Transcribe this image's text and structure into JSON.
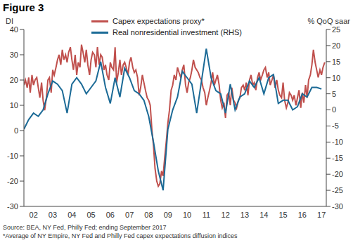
{
  "chart_data": {
    "type": "line",
    "title": "Figure 3",
    "ylabel": "DI",
    "y2label": "% QoQ saar",
    "annotations": [
      "Source: BEA, NY Fed, Philly Fed; ending September 2017",
      "*Average of NY Empire, NY Fed and Philly Fed capex expectations diffusion indices"
    ],
    "xlim": [
      2002,
      2017.75
    ],
    "xticks": [
      {
        "value": 2002.5,
        "label": "02"
      },
      {
        "value": 2003.5,
        "label": "03"
      },
      {
        "value": 2004.5,
        "label": "04"
      },
      {
        "value": 2005.5,
        "label": "05"
      },
      {
        "value": 2006.5,
        "label": "06"
      },
      {
        "value": 2007.5,
        "label": "07"
      },
      {
        "value": 2008.5,
        "label": "08"
      },
      {
        "value": 2009.5,
        "label": "09"
      },
      {
        "value": 2010.5,
        "label": "10"
      },
      {
        "value": 2011.5,
        "label": "11"
      },
      {
        "value": 2012.5,
        "label": "12"
      },
      {
        "value": 2013.5,
        "label": "13"
      },
      {
        "value": 2014.5,
        "label": "14"
      },
      {
        "value": 2015.5,
        "label": "15"
      },
      {
        "value": 2016.5,
        "label": "16"
      },
      {
        "value": 2017.5,
        "label": "17"
      }
    ],
    "ylim": [
      -30,
      40
    ],
    "yticks": [
      -30,
      -20,
      -10,
      0,
      10,
      20,
      30,
      40
    ],
    "y2lim": [
      -30,
      25
    ],
    "y2ticks": [
      -30,
      -25,
      -20,
      -15,
      -10,
      -5,
      0,
      5,
      10,
      15,
      20,
      25
    ],
    "grid": false,
    "legend": "top",
    "series": [
      {
        "name": "Capex expectations proxy*",
        "color": "#c0504d",
        "axis": "y",
        "x": [
          2002,
          2002.08,
          2002.17,
          2002.25,
          2002.33,
          2002.42,
          2002.5,
          2002.58,
          2002.67,
          2002.75,
          2002.83,
          2002.92,
          2003,
          2003.08,
          2003.17,
          2003.25,
          2003.33,
          2003.42,
          2003.5,
          2003.58,
          2003.67,
          2003.75,
          2003.83,
          2003.92,
          2004,
          2004.08,
          2004.17,
          2004.25,
          2004.33,
          2004.42,
          2004.5,
          2004.58,
          2004.67,
          2004.75,
          2004.83,
          2004.92,
          2005,
          2005.08,
          2005.17,
          2005.25,
          2005.33,
          2005.42,
          2005.5,
          2005.58,
          2005.67,
          2005.75,
          2005.83,
          2005.92,
          2006,
          2006.08,
          2006.17,
          2006.25,
          2006.33,
          2006.42,
          2006.5,
          2006.58,
          2006.67,
          2006.75,
          2006.83,
          2006.92,
          2007,
          2007.08,
          2007.17,
          2007.25,
          2007.33,
          2007.42,
          2007.5,
          2007.58,
          2007.67,
          2007.75,
          2007.83,
          2007.92,
          2008,
          2008.08,
          2008.17,
          2008.25,
          2008.33,
          2008.42,
          2008.5,
          2008.58,
          2008.67,
          2008.75,
          2008.83,
          2008.92,
          2009,
          2009.08,
          2009.17,
          2009.25,
          2009.33,
          2009.42,
          2009.5,
          2009.58,
          2009.67,
          2009.75,
          2009.83,
          2009.92,
          2010,
          2010.08,
          2010.17,
          2010.25,
          2010.33,
          2010.42,
          2010.5,
          2010.58,
          2010.67,
          2010.75,
          2010.83,
          2010.92,
          2011,
          2011.08,
          2011.17,
          2011.25,
          2011.33,
          2011.42,
          2011.5,
          2011.58,
          2011.67,
          2011.75,
          2011.83,
          2011.92,
          2012,
          2012.08,
          2012.17,
          2012.25,
          2012.33,
          2012.42,
          2012.5,
          2012.58,
          2012.67,
          2012.75,
          2012.83,
          2012.92,
          2013,
          2013.08,
          2013.17,
          2013.25,
          2013.33,
          2013.42,
          2013.5,
          2013.58,
          2013.67,
          2013.75,
          2013.83,
          2013.92,
          2014,
          2014.08,
          2014.17,
          2014.25,
          2014.33,
          2014.42,
          2014.5,
          2014.58,
          2014.67,
          2014.75,
          2014.83,
          2014.92,
          2015,
          2015.08,
          2015.17,
          2015.25,
          2015.33,
          2015.42,
          2015.5,
          2015.58,
          2015.67,
          2015.75,
          2015.83,
          2015.92,
          2016,
          2016.08,
          2016.17,
          2016.25,
          2016.33,
          2016.42,
          2016.5,
          2016.58,
          2016.67,
          2016.75,
          2016.83,
          2016.92,
          2017,
          2017.08,
          2017.17,
          2017.25,
          2017.33,
          2017.42,
          2017.5,
          2017.58,
          2017.67
        ],
        "values": [
          18,
          20,
          17,
          21,
          15,
          22,
          18,
          20,
          21,
          17,
          13,
          19,
          12,
          8,
          13,
          20,
          21,
          15,
          24,
          22,
          25,
          28,
          30,
          26,
          32,
          28,
          30,
          27,
          31,
          33,
          28,
          24,
          30,
          22,
          27,
          25,
          34,
          31,
          27,
          32,
          26,
          22,
          28,
          31,
          30,
          25,
          33,
          26,
          30,
          29,
          24,
          26,
          22,
          20,
          27,
          25,
          24,
          33,
          19,
          23,
          28,
          22,
          26,
          27,
          25,
          22,
          27,
          29,
          25,
          23,
          24,
          21,
          14,
          17,
          22,
          19,
          16,
          13,
          12,
          10,
          0,
          -6,
          -15,
          -20,
          -22,
          -21,
          -16,
          -18,
          -11,
          -4,
          3,
          8,
          16,
          18,
          22,
          20,
          25,
          23,
          21,
          24,
          26,
          18,
          15,
          19,
          21,
          24,
          28,
          25,
          24,
          23,
          21,
          20,
          17,
          15,
          10,
          13,
          16,
          19,
          23,
          18,
          20,
          22,
          18,
          12,
          9,
          11,
          5,
          14,
          15,
          10,
          17,
          12,
          11,
          9,
          12,
          13,
          17,
          18,
          16,
          19,
          14,
          20,
          22,
          18,
          19,
          16,
          21,
          23,
          20,
          22,
          24,
          25,
          21,
          23,
          18,
          20,
          22,
          17,
          20,
          16,
          14,
          13,
          19,
          12,
          9,
          11,
          15,
          14,
          12,
          14,
          10,
          13,
          16,
          9,
          15,
          11,
          18,
          13,
          20,
          22,
          26,
          32,
          27,
          24,
          21,
          24,
          22,
          25,
          27
        ]
      },
      {
        "name": "Real nonresidential investment (RHS)",
        "color": "#1b6a96",
        "axis": "y2",
        "x": [
          2002,
          2002.25,
          2002.5,
          2002.75,
          2003,
          2003.25,
          2003.5,
          2003.75,
          2004,
          2004.25,
          2004.5,
          2004.75,
          2005,
          2005.25,
          2005.5,
          2005.75,
          2006,
          2006.25,
          2006.5,
          2006.75,
          2007,
          2007.25,
          2007.5,
          2007.75,
          2008,
          2008.25,
          2008.5,
          2008.75,
          2009,
          2009.25,
          2009.5,
          2009.75,
          2010,
          2010.25,
          2010.5,
          2010.75,
          2011,
          2011.25,
          2011.5,
          2011.75,
          2012,
          2012.25,
          2012.5,
          2012.75,
          2013,
          2013.25,
          2013.5,
          2013.75,
          2014,
          2014.25,
          2014.5,
          2014.75,
          2015,
          2015.25,
          2015.5,
          2015.75,
          2016,
          2016.25,
          2016.5,
          2016.75,
          2017,
          2017.25,
          2017.5
        ],
        "values": [
          -6,
          -3,
          -1,
          -2,
          0,
          5,
          9,
          8,
          6,
          -1,
          8,
          10,
          8,
          5,
          7,
          9,
          15,
          7,
          2,
          10,
          4,
          13,
          10,
          6,
          5,
          3,
          -2,
          -10,
          -19,
          -25,
          -6,
          0,
          4,
          12,
          10,
          8,
          -1,
          9,
          19,
          10,
          6,
          5,
          -1,
          8,
          0,
          4,
          5,
          9,
          7,
          10,
          5,
          10,
          11,
          2,
          3,
          3,
          0,
          1,
          5,
          4,
          7,
          7,
          6.5
        ]
      }
    ]
  }
}
